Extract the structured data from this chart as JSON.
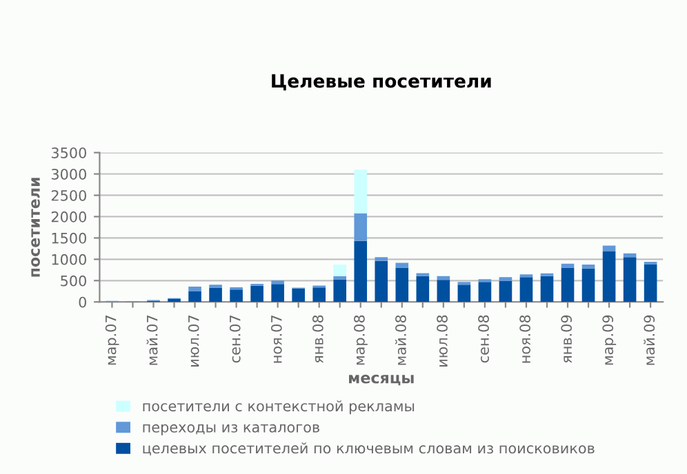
{
  "chart_data": {
    "type": "bar",
    "title": "Целевые посетители",
    "xlabel": "месяцы",
    "ylabel": "посетители",
    "stacked": true,
    "categories": [
      "мар.07",
      null,
      "май.07",
      null,
      "июл.07",
      null,
      "сен.07",
      null,
      "ноя.07",
      null,
      "янв.08",
      null,
      "мар.08",
      null,
      "май.08",
      null,
      "июл.08",
      null,
      "сен.08",
      null,
      "ноя.08",
      null,
      "янв.09",
      null,
      "мар.09",
      null,
      "май.09"
    ],
    "series": [
      {
        "name": "целевых посетителей по ключевым словам из поисковиков",
        "color": "#0050a0",
        "values": [
          5,
          5,
          25,
          70,
          245,
          335,
          290,
          380,
          420,
          315,
          340,
          530,
          1430,
          960,
          805,
          605,
          515,
          405,
          470,
          490,
          580,
          605,
          805,
          785,
          1185,
          1050,
          875
        ]
      },
      {
        "name": "переходы из каталогов",
        "color": "#6098d8",
        "values": [
          20,
          15,
          20,
          20,
          115,
          70,
          55,
          45,
          80,
          20,
          45,
          75,
          650,
          90,
          110,
          70,
          90,
          65,
          65,
          90,
          65,
          65,
          90,
          90,
          135,
          90,
          65
        ]
      },
      {
        "name": "посетители с контекстной рекламы",
        "color": "#ccffff",
        "values": [
          0,
          0,
          0,
          0,
          0,
          0,
          0,
          0,
          0,
          0,
          0,
          270,
          1020,
          0,
          0,
          0,
          0,
          0,
          0,
          0,
          0,
          0,
          0,
          0,
          0,
          0,
          0
        ]
      }
    ],
    "ylim": [
      0,
      3500
    ],
    "yticks": [
      0,
      500,
      1000,
      1500,
      2000,
      2500,
      3000,
      3500
    ],
    "grid": "y",
    "legend": "bottom"
  }
}
